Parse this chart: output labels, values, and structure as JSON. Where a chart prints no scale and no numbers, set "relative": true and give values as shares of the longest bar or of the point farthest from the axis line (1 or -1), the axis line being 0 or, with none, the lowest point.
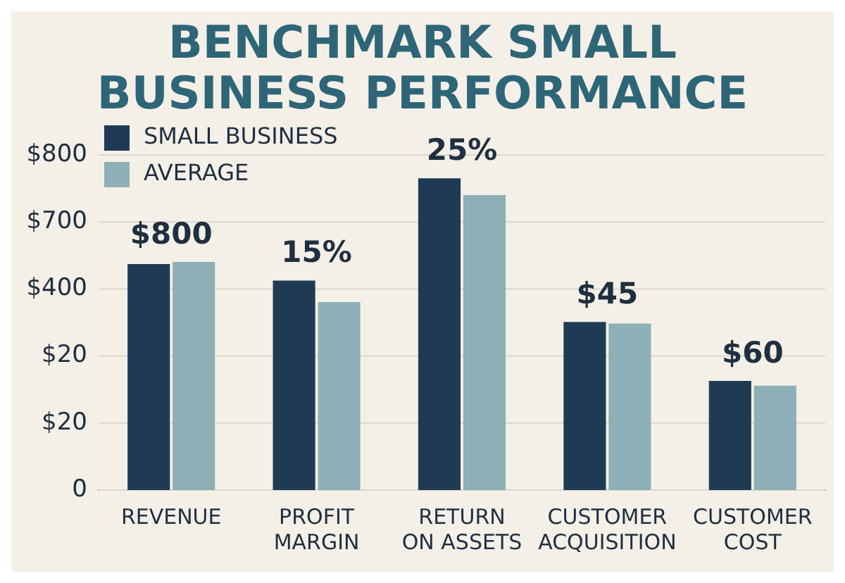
{
  "chart_data": {
    "type": "bar",
    "title": "BENCHMARK SMALL BUSINESS PERFORMANCE",
    "categories": [
      "REVENUE",
      "PROFIT\nMARGIN",
      "RETURN\nON ASSETS",
      "CUSTOMER\nACQUISITION",
      "CUSTOMER\nCOST"
    ],
    "relative": true,
    "series": [
      {
        "name": "SMALL BUSINESS",
        "color": "#1f3b54",
        "values": [
          0.725,
          0.672,
          1,
          0.539,
          0.35
        ]
      },
      {
        "name": "AVERAGE",
        "color": "#8cb0b5",
        "values": [
          0.732,
          0.603,
          0.946,
          0.534,
          0.335
        ]
      }
    ],
    "grid": "y",
    "legend": "top left",
    "annotations": [
      "$800",
      "$700",
      "$400",
      "$20",
      "$20",
      "0",
      {
        "text": "$800",
        "x": "REVENUE",
        "y": 0.732
      },
      {
        "text": "15%",
        "x": "PROFIT\nMARGIN",
        "y": 0.672
      },
      {
        "text": "25%",
        "x": "RETURN\nON ASSETS",
        "y": 1
      },
      {
        "text": "$45",
        "x": "CUSTOMER\nACQUISITION",
        "y": 0.539
      },
      {
        "text": "$60",
        "x": "CUSTOMER\nCOST",
        "y": 0.35
      }
    ]
  }
}
